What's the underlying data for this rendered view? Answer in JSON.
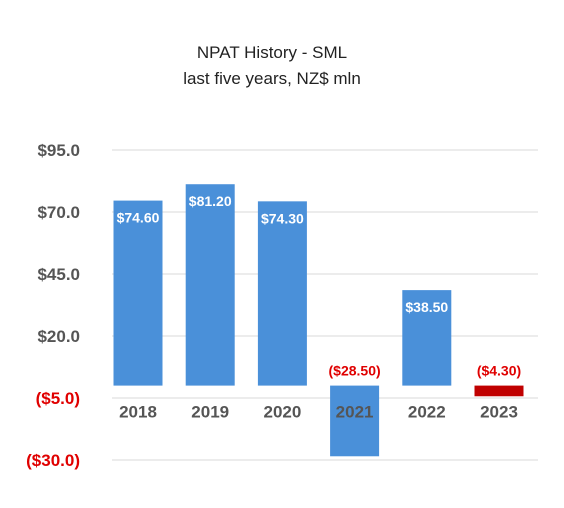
{
  "chart_data": {
    "type": "bar",
    "title": "NPAT History - SML",
    "subtitle": "last five years, NZ$ mln",
    "categories": [
      "2018",
      "2019",
      "2020",
      "2021",
      "2022",
      "2023"
    ],
    "values": [
      74.6,
      81.2,
      74.3,
      -28.5,
      38.5,
      -4.3
    ],
    "data_labels": [
      "$74.60",
      "$81.20",
      "$74.30",
      "($28.50)",
      "$38.50",
      "($4.30)"
    ],
    "yticks": [
      95,
      70,
      45,
      20,
      -5,
      -30
    ],
    "ytick_labels": [
      "$95.0",
      "$70.0",
      "$45.0",
      "$20.0",
      "($5.0)",
      "($30.0)"
    ],
    "ylim": [
      -30,
      95
    ],
    "xlabel": "",
    "ylabel": "",
    "grid": true,
    "legend": "none",
    "colors": {
      "positive_bar": "#4a90d9",
      "negative_bar_default": "#4a90d9",
      "negative_bar_highlight": "#c00000",
      "negative_label": "#e00000",
      "positive_label": "#ffffff",
      "axis_label": "#555555"
    },
    "bar_colors": [
      "#4a90d9",
      "#4a90d9",
      "#4a90d9",
      "#4a90d9",
      "#4a90d9",
      "#c00000"
    ]
  }
}
